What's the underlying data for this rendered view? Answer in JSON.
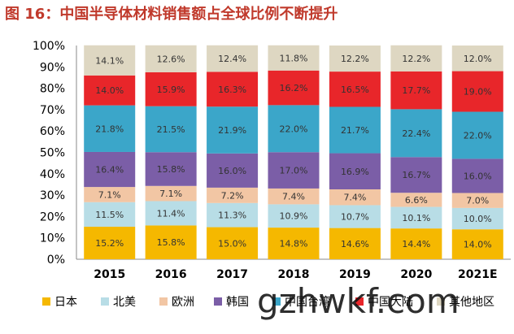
{
  "title": "图 16：中国半导体材料销售额占全球比例不断提升",
  "watermark": "gzhwkf.com",
  "chart_data": {
    "type": "bar",
    "stacked": true,
    "normalized": true,
    "categories": [
      "2015",
      "2016",
      "2017",
      "2018",
      "2019",
      "2020",
      "2021E"
    ],
    "yticks": [
      "0%",
      "10%",
      "20%",
      "30%",
      "40%",
      "50%",
      "60%",
      "70%",
      "80%",
      "90%",
      "100%"
    ],
    "ylim": [
      0,
      100
    ],
    "legend_position": "bottom",
    "series": [
      {
        "name": "日本",
        "color": "#f5b800",
        "values": [
          15.2,
          15.8,
          15.0,
          14.8,
          14.6,
          14.4,
          14.0
        ],
        "labels": [
          "15.2%",
          "15.8%",
          "15.0%",
          "14.8%",
          "14.6%",
          "14.4%",
          "14.0%"
        ]
      },
      {
        "name": "北美",
        "color": "#b8dde6",
        "values": [
          11.5,
          11.4,
          11.3,
          10.9,
          10.7,
          10.1,
          10.0
        ],
        "labels": [
          "11.5%",
          "11.4%",
          "11.3%",
          "10.9%",
          "10.7%",
          "10.1%",
          "10.0%"
        ]
      },
      {
        "name": "欧洲",
        "color": "#f2c6a4",
        "values": [
          7.1,
          7.1,
          7.2,
          7.4,
          7.4,
          6.6,
          7.0
        ],
        "labels": [
          "7.1%",
          "7.1%",
          "7.2%",
          "7.4%",
          "7.4%",
          "6.6%",
          "7.0%"
        ]
      },
      {
        "name": "韩国",
        "color": "#7b5ea7",
        "values": [
          16.4,
          15.8,
          16.0,
          17.0,
          16.9,
          16.7,
          16.0
        ],
        "labels": [
          "16.4%",
          "15.8%",
          "16.0%",
          "17.0%",
          "16.9%",
          "16.7%",
          "16.0%"
        ]
      },
      {
        "name": "中国台湾",
        "color": "#3ba6c9",
        "values": [
          21.8,
          21.5,
          21.9,
          22.0,
          21.7,
          22.4,
          22.0
        ],
        "labels": [
          "21.8%",
          "21.5%",
          "21.9%",
          "22.0%",
          "21.7%",
          "22.4%",
          "22.0%"
        ]
      },
      {
        "name": "中国大陆",
        "color": "#e8262a",
        "values": [
          14.0,
          15.9,
          16.3,
          16.2,
          16.5,
          17.7,
          19.0
        ],
        "labels": [
          "14.0%",
          "15.9%",
          "16.3%",
          "16.2%",
          "16.5%",
          "17.7%",
          "19.0%"
        ]
      },
      {
        "name": "其他地区",
        "color": "#ded7c2",
        "values": [
          14.1,
          12.6,
          12.4,
          11.8,
          12.2,
          12.2,
          12.0
        ],
        "labels": [
          "14.1%",
          "12.6%",
          "12.4%",
          "11.8%",
          "12.2%",
          "12.2%",
          "12.0%"
        ]
      }
    ]
  }
}
